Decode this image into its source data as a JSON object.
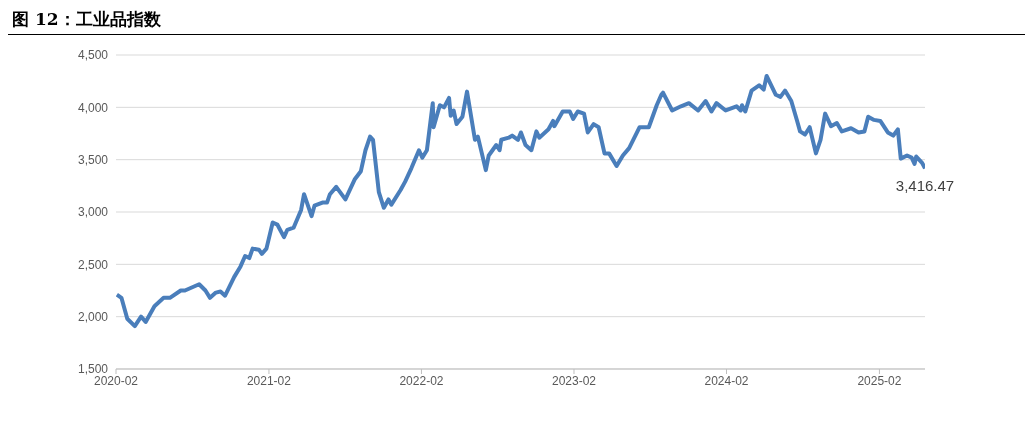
{
  "chart_data": {
    "type": "line",
    "title": "图 12：工业品指数",
    "x": [
      "2020-02-03",
      "2020-02-14",
      "2020-02-28",
      "2020-03-17",
      "2020-04-01",
      "2020-04-12",
      "2020-05-03",
      "2020-05-25",
      "2020-06-09",
      "2020-07-05",
      "2020-07-15",
      "2020-08-18",
      "2020-09-02",
      "2020-09-13",
      "2020-09-27",
      "2020-10-08",
      "2020-10-19",
      "2020-11-10",
      "2020-11-25",
      "2020-12-06",
      "2020-12-16",
      "2020-12-24",
      "2021-01-08",
      "2021-01-15",
      "2021-01-26",
      "2021-02-10",
      "2021-02-21",
      "2021-03-09",
      "2021-03-17",
      "2021-04-01",
      "2021-04-19",
      "2021-04-26",
      "2021-05-14",
      "2021-05-21",
      "2021-06-09",
      "2021-06-20",
      "2021-06-27",
      "2021-07-12",
      "2021-08-03",
      "2021-08-25",
      "2021-09-09",
      "2021-09-20",
      "2021-10-01",
      "2021-10-08",
      "2021-10-22",
      "2021-11-03",
      "2021-11-14",
      "2021-11-21",
      "2021-12-13",
      "2021-12-24",
      "2022-01-08",
      "2022-01-26",
      "2022-02-03",
      "2022-02-14",
      "2022-02-28",
      "2022-03-02",
      "2022-03-17",
      "2022-03-27",
      "2022-04-08",
      "2022-04-12",
      "2022-04-19",
      "2022-04-26",
      "2022-05-10",
      "2022-05-21",
      "2022-06-09",
      "2022-06-16",
      "2022-07-05",
      "2022-07-12",
      "2022-07-30",
      "2022-08-07",
      "2022-08-11",
      "2022-08-29",
      "2022-09-06",
      "2022-09-20",
      "2022-09-27",
      "2022-10-08",
      "2022-10-22",
      "2022-11-03",
      "2022-11-10",
      "2022-12-02",
      "2022-12-13",
      "2022-12-16",
      "2023-01-05",
      "2023-01-22",
      "2023-01-30",
      "2023-02-10",
      "2023-02-25",
      "2023-03-06",
      "2023-03-20",
      "2023-04-01",
      "2023-04-15",
      "2023-04-26",
      "2023-05-14",
      "2023-05-29",
      "2023-06-13",
      "2023-07-08",
      "2023-07-30",
      "2023-08-18",
      "2023-08-29",
      "2023-09-02",
      "2023-09-24",
      "2023-10-15",
      "2023-11-03",
      "2023-11-25",
      "2023-12-13",
      "2023-12-27",
      "2024-01-08",
      "2024-01-30",
      "2024-02-25",
      "2024-03-06",
      "2024-03-09",
      "2024-03-17",
      "2024-04-01",
      "2024-04-19",
      "2024-04-30",
      "2024-05-07",
      "2024-05-29",
      "2024-06-09",
      "2024-06-20",
      "2024-07-05",
      "2024-07-19",
      "2024-07-26",
      "2024-08-07",
      "2024-08-18",
      "2024-09-02",
      "2024-09-13",
      "2024-09-24",
      "2024-10-08",
      "2024-10-22",
      "2024-11-03",
      "2024-11-25",
      "2024-12-13",
      "2024-12-27",
      "2025-01-05",
      "2025-01-19",
      "2025-02-03",
      "2025-02-21",
      "2025-03-06",
      "2025-03-17",
      "2025-03-24",
      "2025-04-08",
      "2025-04-19",
      "2025-04-26",
      "2025-04-30",
      "2025-05-14",
      "2025-05-21"
    ],
    "series": [
      {
        "color": "#4a7ebb",
        "values": [
          2210,
          2180,
          1980,
          1910,
          2000,
          1950,
          2100,
          2180,
          2180,
          2250,
          2250,
          2310,
          2250,
          2180,
          2230,
          2240,
          2200,
          2380,
          2480,
          2580,
          2560,
          2650,
          2640,
          2600,
          2650,
          2900,
          2880,
          2760,
          2830,
          2850,
          3020,
          3170,
          2960,
          3060,
          3090,
          3090,
          3170,
          3240,
          3120,
          3310,
          3390,
          3590,
          3720,
          3690,
          3190,
          3040,
          3120,
          3070,
          3210,
          3290,
          3420,
          3590,
          3520,
          3590,
          4040,
          3810,
          4020,
          4000,
          4090,
          3920,
          3970,
          3840,
          3910,
          4150,
          3690,
          3720,
          3400,
          3540,
          3640,
          3590,
          3690,
          3710,
          3730,
          3690,
          3760,
          3640,
          3590,
          3770,
          3710,
          3790,
          3870,
          3820,
          3960,
          3960,
          3890,
          3960,
          3940,
          3760,
          3840,
          3810,
          3560,
          3560,
          3440,
          3540,
          3610,
          3810,
          3810,
          4020,
          4120,
          4140,
          3970,
          4010,
          4040,
          3970,
          4060,
          3960,
          4040,
          3970,
          4010,
          3970,
          4020,
          3960,
          4160,
          4210,
          4170,
          4300,
          4120,
          4100,
          4160,
          4060,
          3870,
          3770,
          3740,
          3810,
          3560,
          3690,
          3940,
          3820,
          3850,
          3770,
          3800,
          3760,
          3770,
          3910,
          3880,
          3870,
          3760,
          3730,
          3790,
          3510,
          3540,
          3520,
          3460,
          3530,
          3470,
          3416.47
        ]
      }
    ],
    "xlim": [
      "2020-02",
      "2025-05-21"
    ],
    "xticks": [
      "2020-02",
      "2021-02",
      "2022-02",
      "2023-02",
      "2024-02",
      "2025-02"
    ],
    "ylim": [
      1500,
      4500
    ],
    "yticks": [
      {
        "value": 1500,
        "label": "1,500"
      },
      {
        "value": 2000,
        "label": "2,000"
      },
      {
        "value": 2500,
        "label": "2,500"
      },
      {
        "value": 3000,
        "label": "3,000"
      },
      {
        "value": 3500,
        "label": "3,500"
      },
      {
        "value": 4000,
        "label": "4,000"
      },
      {
        "value": 4500,
        "label": "4,500"
      }
    ],
    "annotations": [
      {
        "text": "3,416.47",
        "x": "2025-05-21",
        "y": 3416.47
      }
    ],
    "grid": "y",
    "legend": false,
    "marker": "none",
    "line_style": "solid"
  }
}
